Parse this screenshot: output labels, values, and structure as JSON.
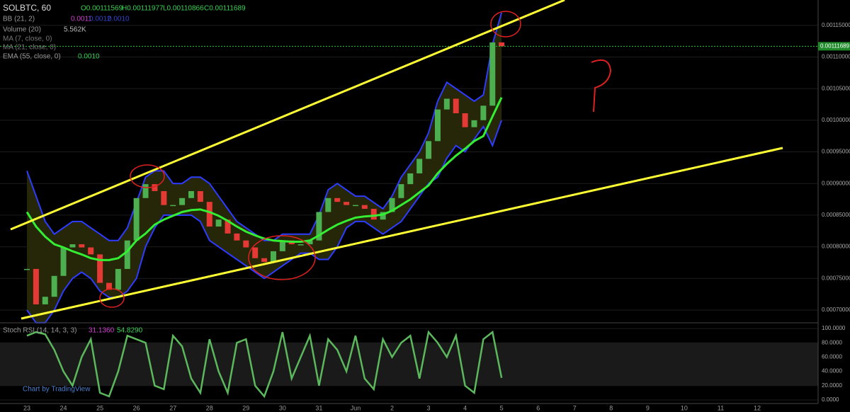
{
  "chart_data": [
    {
      "type": "candlestick",
      "title": "SOLBTC, 60",
      "ohlc": [
        "O0.00111569",
        "H0.00111977",
        "L0.00110866",
        "C0.00111689"
      ],
      "indicators": [
        {
          "name": "BB (21, 2)",
          "labels": [
            "0.0011",
            "0.0012",
            "0.0010"
          ]
        },
        {
          "name": "Volume (20)",
          "labels": [
            "5.562K"
          ]
        },
        {
          "name": "MA (7, close, 0)"
        },
        {
          "name": "MA (21, close, 0)"
        },
        {
          "name": "EMA (55, close, 0)",
          "labels": [
            "0.0010"
          ]
        }
      ],
      "up_color": "#4caf50",
      "down_color": "#e53935",
      "closes": [
        0.000765,
        0.000709,
        0.000721,
        0.000754,
        0.000799,
        0.000804,
        0.000799,
        0.000788,
        0.000743,
        0.000732,
        0.000765,
        0.00081,
        0.000877,
        0.000899,
        0.000888,
        0.000866,
        0.000866,
        0.000877,
        0.000888,
        0.000871,
        0.000832,
        0.000843,
        0.000821,
        0.00081,
        0.000799,
        0.000782,
        0.000776,
        0.000793,
        0.00081,
        0.000804,
        0.000804,
        0.00081,
        0.000855,
        0.000877,
        0.000871,
        0.000866,
        0.000866,
        0.00086,
        0.000843,
        0.000855,
        0.000877,
        0.000899,
        0.000916,
        0.000939,
        0.000967,
        0.001017,
        0.001034,
        0.001011,
        0.000989,
        0.001,
        0.001023,
        0.001123,
        0.00111689
      ],
      "ema_line": {
        "color": "#33ee33",
        "values": [
          0.000855,
          0.000832,
          0.000816,
          0.000804,
          0.000799,
          0.000793,
          0.000788,
          0.000782,
          0.000779,
          0.000779,
          0.000782,
          0.000793,
          0.00081,
          0.000821,
          0.000835,
          0.000843,
          0.000849,
          0.000855,
          0.000858,
          0.000859,
          0.000855,
          0.000849,
          0.000841,
          0.000832,
          0.000824,
          0.000818,
          0.000813,
          0.00081,
          0.000809,
          0.000808,
          0.000808,
          0.00081,
          0.000818,
          0.000827,
          0.000835,
          0.000841,
          0.000846,
          0.000848,
          0.000849,
          0.000851,
          0.000857,
          0.000866,
          0.000875,
          0.000886,
          0.000897,
          0.000916,
          0.000931,
          0.000944,
          0.000955,
          0.000967,
          0.000975,
          0.001006,
          0.001036
        ]
      },
      "bands": {
        "color": "#2d3cff",
        "fill": "#262608",
        "upper": [
          0.00092,
          0.00088,
          0.00084,
          0.00082,
          0.00083,
          0.00084,
          0.00084,
          0.00083,
          0.00082,
          0.00081,
          0.00081,
          0.00083,
          0.00087,
          0.00091,
          0.00092,
          0.00092,
          0.0009,
          0.0009,
          0.00091,
          0.00091,
          0.0009,
          0.00088,
          0.00086,
          0.00084,
          0.00083,
          0.00082,
          0.00081,
          0.00081,
          0.00082,
          0.00082,
          0.00082,
          0.00082,
          0.00085,
          0.00089,
          0.0009,
          0.00089,
          0.00088,
          0.00088,
          0.00087,
          0.00086,
          0.00088,
          0.00091,
          0.00093,
          0.00095,
          0.00098,
          0.00103,
          0.00106,
          0.00105,
          0.00104,
          0.00103,
          0.00104,
          0.00112,
          0.00117
        ],
        "lower": [
          0.0007,
          0.00068,
          0.00068,
          0.0007,
          0.00073,
          0.00075,
          0.00076,
          0.00075,
          0.00073,
          0.00072,
          0.00072,
          0.00073,
          0.00075,
          0.0008,
          0.00083,
          0.00085,
          0.00085,
          0.00085,
          0.00085,
          0.00084,
          0.00081,
          0.0008,
          0.00079,
          0.00078,
          0.00077,
          0.00076,
          0.00075,
          0.00076,
          0.00077,
          0.00078,
          0.00079,
          0.00079,
          0.00078,
          0.00078,
          0.0008,
          0.00083,
          0.00084,
          0.00084,
          0.00083,
          0.00082,
          0.00083,
          0.00084,
          0.00086,
          0.00088,
          0.0009,
          0.00091,
          0.00094,
          0.00096,
          0.00095,
          0.00097,
          0.00099,
          0.00096,
          0.001
        ]
      },
      "last_price": {
        "value": 0.00111689,
        "label": "0.00111689"
      },
      "ylim": [
        0.000681,
        0.00119
      ],
      "yticks": [
        {
          "value": 0.00115,
          "label": "0.00115000"
        },
        {
          "value": 0.0011,
          "label": "0.00110000"
        },
        {
          "value": 0.00105,
          "label": "0.00105000"
        },
        {
          "value": 0.001,
          "label": "0.00100000"
        },
        {
          "value": 0.00095,
          "label": "0.00095000"
        },
        {
          "value": 0.0009,
          "label": "0.00090000"
        },
        {
          "value": 0.00085,
          "label": "0.00085000"
        },
        {
          "value": 0.0008,
          "label": "0.00080000"
        },
        {
          "value": 0.00075,
          "label": "0.00075000"
        },
        {
          "value": 0.0007,
          "label": "0.00070000"
        }
      ],
      "grid": true
    },
    {
      "type": "line",
      "title": "Stoch RSI (14, 14, 3, 3)",
      "value_labels": [
        "31.1360",
        "54.8290"
      ],
      "series": [
        {
          "color": "#5cb85c",
          "values": [
            90,
            95,
            92,
            70,
            40,
            20,
            60,
            85,
            10,
            5,
            40,
            90,
            85,
            80,
            20,
            15,
            90,
            75,
            30,
            10,
            85,
            40,
            10,
            80,
            85,
            20,
            5,
            40,
            95,
            30,
            60,
            90,
            20,
            85,
            70,
            40,
            90,
            30,
            15,
            85,
            60,
            80,
            90,
            30,
            95,
            80,
            60,
            90,
            20,
            10,
            85,
            95,
            31
          ]
        }
      ],
      "ylim": [
        -5,
        107
      ],
      "yticks": [
        {
          "value": 100,
          "label": "100.0000"
        },
        {
          "value": 80,
          "label": "80.0000"
        },
        {
          "value": 60,
          "label": "60.0000"
        },
        {
          "value": 40,
          "label": "40.0000"
        },
        {
          "value": 20,
          "label": "20.0000"
        },
        {
          "value": 0,
          "label": "0.0000"
        }
      ],
      "grid": true
    }
  ],
  "x_axis": [
    "23",
    "24",
    "25",
    "26",
    "27",
    "28",
    "29",
    "30",
    "31",
    "Jun",
    "2",
    "3",
    "4",
    "5",
    "6",
    "7",
    "8",
    "9",
    "10",
    "11",
    "12"
  ],
  "watermark": "Chart by TradingView"
}
